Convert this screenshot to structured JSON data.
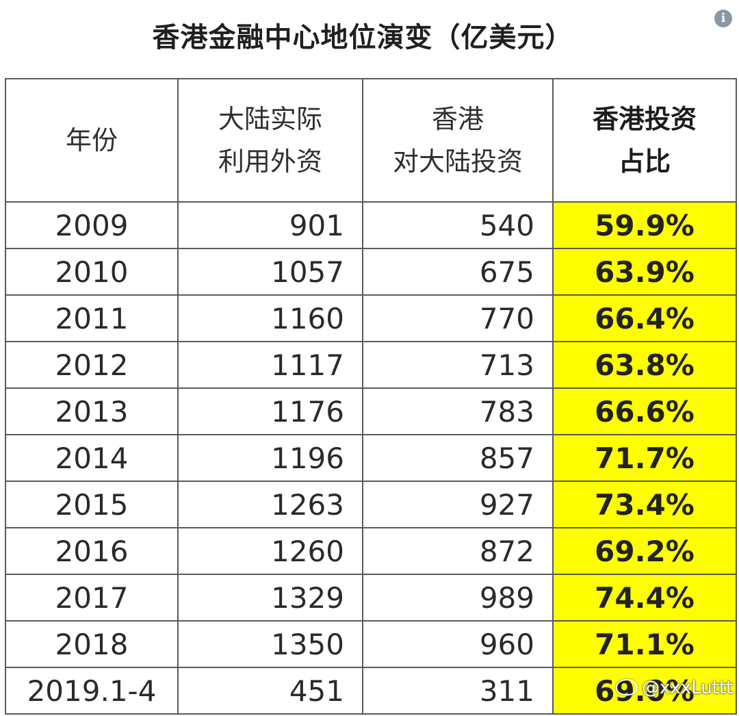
{
  "title": "香港金融中心地位演变（亿美元）",
  "info_icon_glyph": "i",
  "table": {
    "headers": {
      "year": "年份",
      "fdi_line1": "大陆实际",
      "fdi_line2": "利用外资",
      "hk_line1": "香港",
      "hk_line2": "对大陆投资",
      "share_line1": "香港投资",
      "share_line2": "占比"
    },
    "rows": [
      {
        "year": "2009",
        "fdi": "901",
        "hk": "540",
        "share": "59.9%"
      },
      {
        "year": "2010",
        "fdi": "1057",
        "hk": "675",
        "share": "63.9%"
      },
      {
        "year": "2011",
        "fdi": "1160",
        "hk": "770",
        "share": "66.4%"
      },
      {
        "year": "2012",
        "fdi": "1117",
        "hk": "713",
        "share": "63.8%"
      },
      {
        "year": "2013",
        "fdi": "1176",
        "hk": "783",
        "share": "66.6%"
      },
      {
        "year": "2014",
        "fdi": "1196",
        "hk": "857",
        "share": "71.7%"
      },
      {
        "year": "2015",
        "fdi": "1263",
        "hk": "927",
        "share": "73.4%"
      },
      {
        "year": "2016",
        "fdi": "1260",
        "hk": "872",
        "share": "69.2%"
      },
      {
        "year": "2017",
        "fdi": "1329",
        "hk": "989",
        "share": "74.4%"
      },
      {
        "year": "2018",
        "fdi": "1350",
        "hk": "960",
        "share": "71.1%"
      },
      {
        "year": "2019.1-4",
        "fdi": "451",
        "hk": "311",
        "share": "69.0%"
      }
    ]
  },
  "highlight_color": "#fefe00",
  "watermark": "@xxxLuttt",
  "watermark_icon": "weibo-icon"
}
